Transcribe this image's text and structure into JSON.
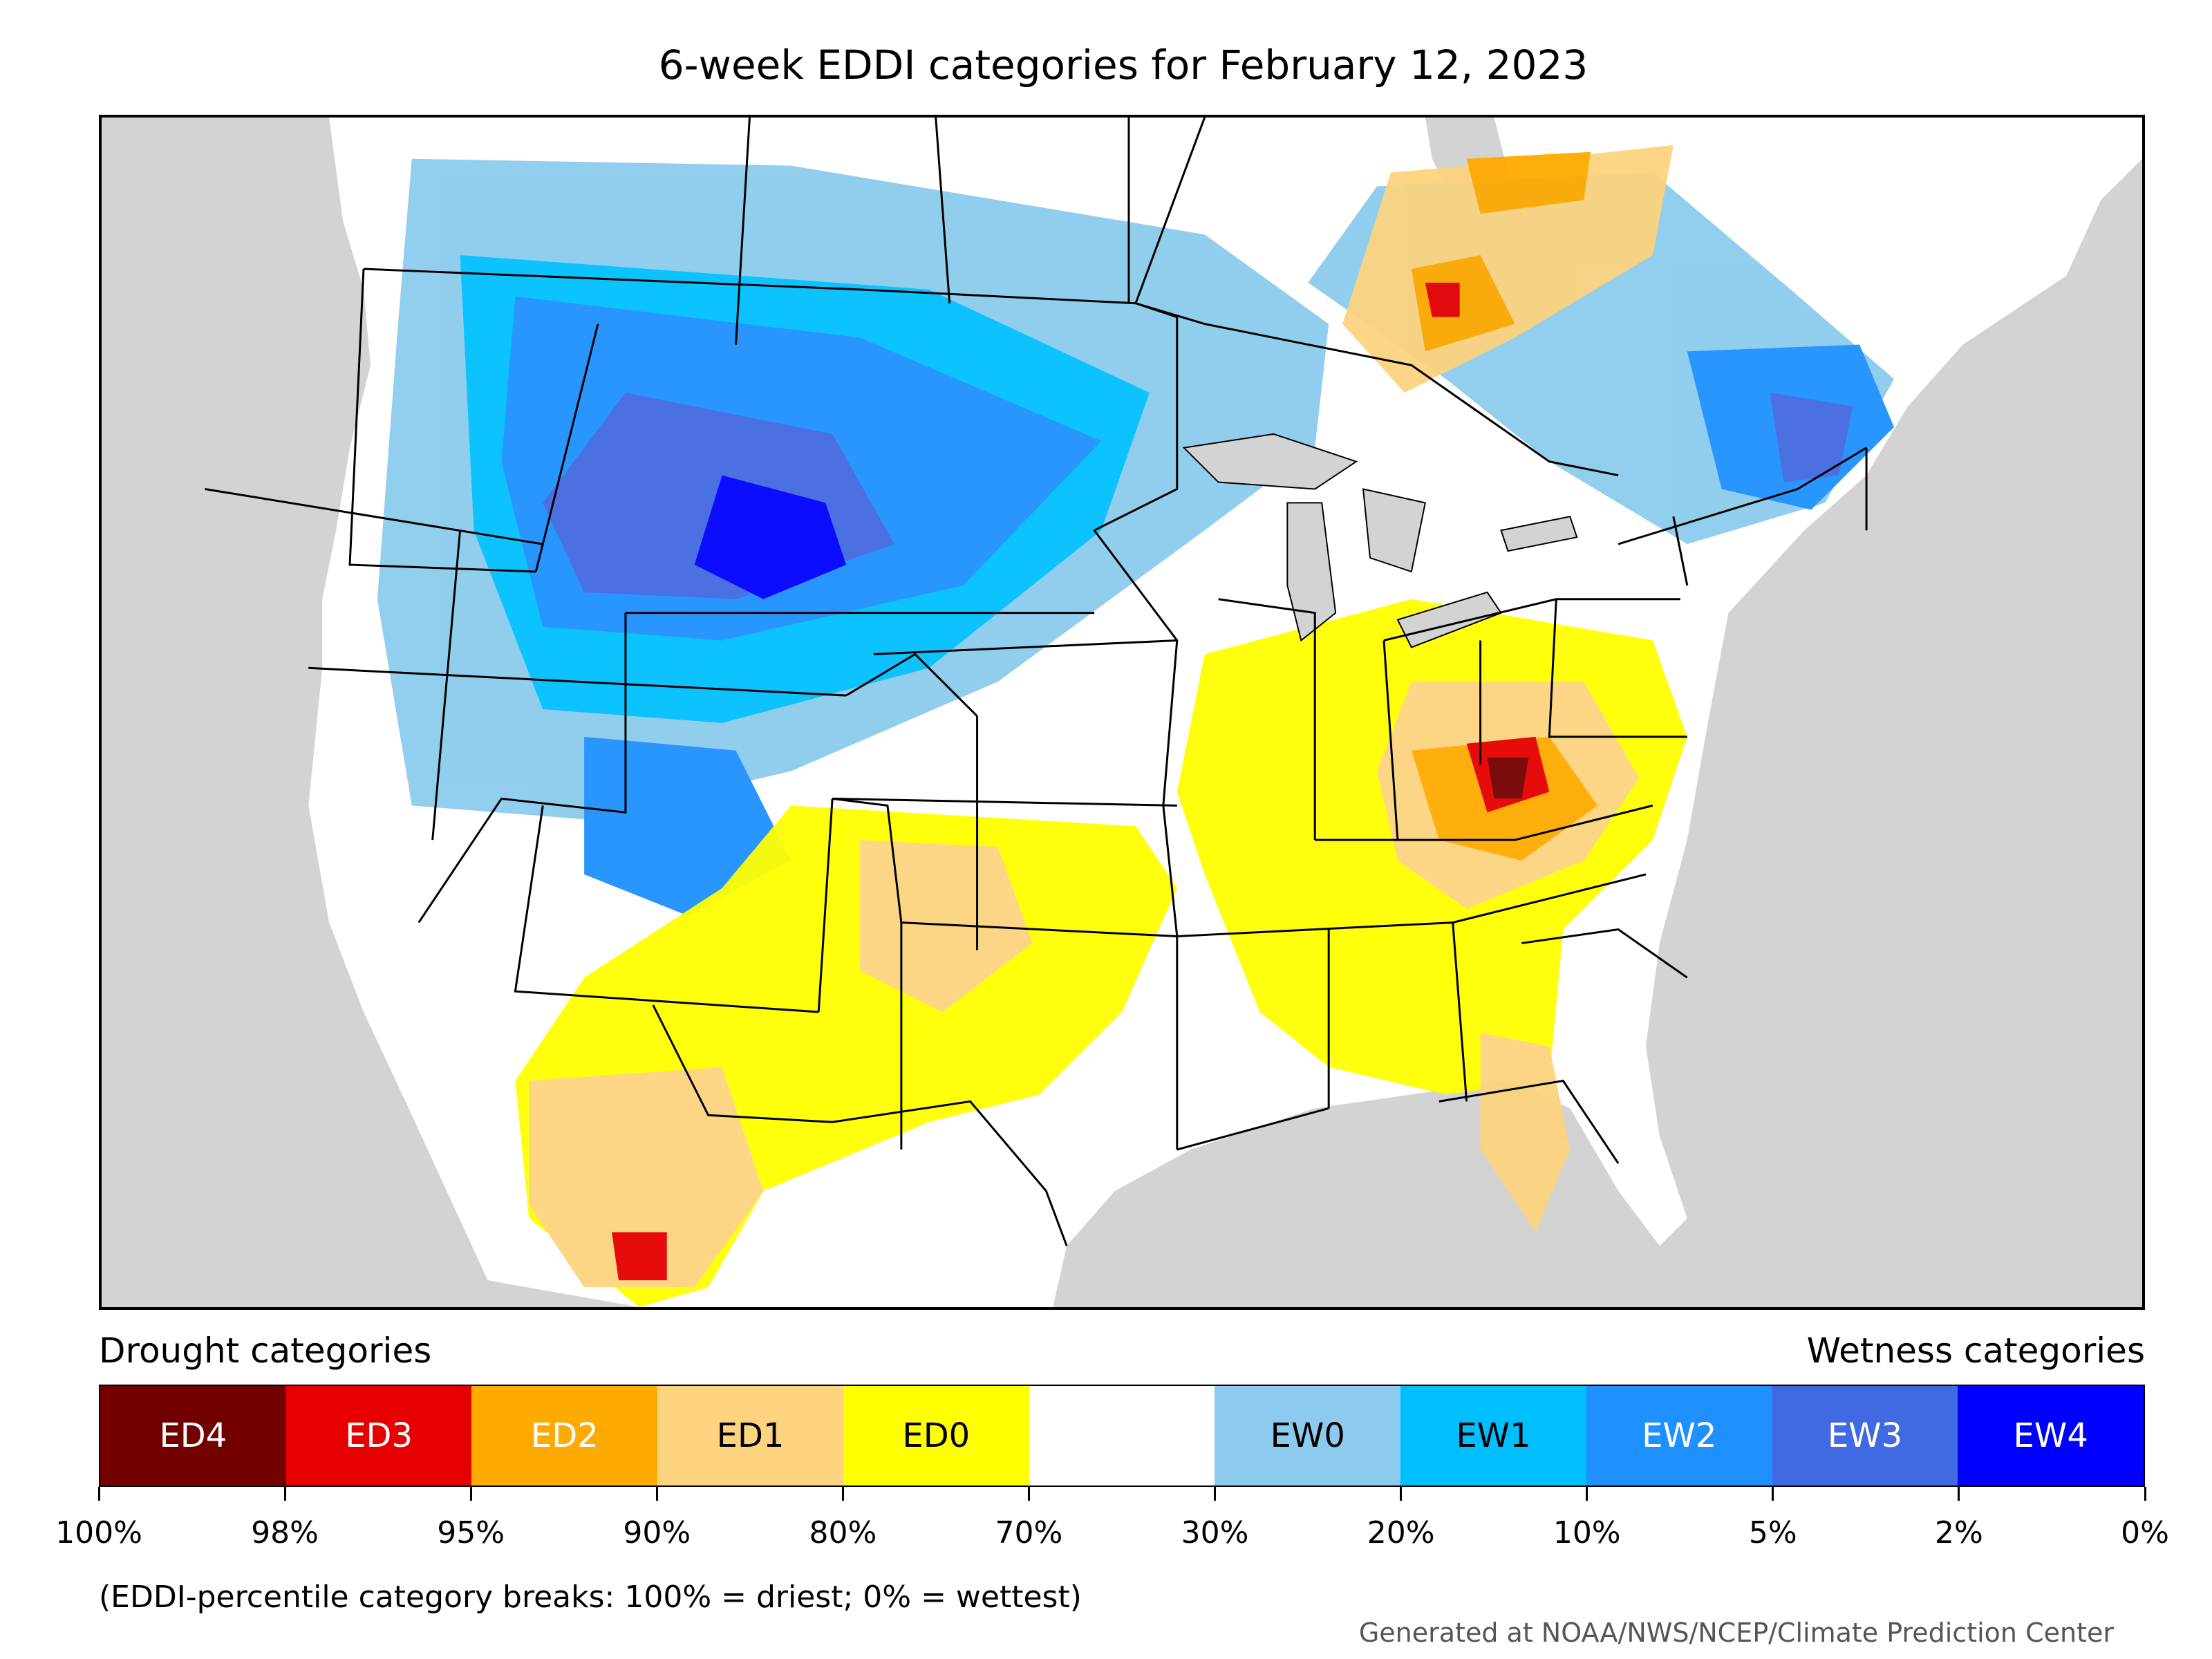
{
  "title": "6-week EDDI categories for February 12, 2023",
  "legend": {
    "drought_label": "Drought categories",
    "wetness_label": "Wetness categories",
    "categories": [
      {
        "label": "ED4",
        "color": "#730000",
        "text_color": "#ffffff"
      },
      {
        "label": "ED3",
        "color": "#e60000",
        "text_color": "#ffffff"
      },
      {
        "label": "ED2",
        "color": "#ffaa00",
        "text_color": "#ffffff"
      },
      {
        "label": "ED1",
        "color": "#fcd37f",
        "text_color": "#000000"
      },
      {
        "label": "ED0",
        "color": "#ffff00",
        "text_color": "#000000"
      },
      {
        "label": "",
        "color": "#ffffff",
        "text_color": "#000000"
      },
      {
        "label": "EW0",
        "color": "#8ccbed",
        "text_color": "#000000"
      },
      {
        "label": "EW1",
        "color": "#00bfff",
        "text_color": "#000000"
      },
      {
        "label": "EW2",
        "color": "#1e90ff",
        "text_color": "#ffffff"
      },
      {
        "label": "EW3",
        "color": "#4169e1",
        "text_color": "#ffffff"
      },
      {
        "label": "EW4",
        "color": "#0000ff",
        "text_color": "#ffffff"
      }
    ],
    "breaks": [
      "100%",
      "98%",
      "95%",
      "90%",
      "80%",
      "70%",
      "30%",
      "20%",
      "10%",
      "5%",
      "2%",
      "0%"
    ]
  },
  "note": "(EDDI-percentile category breaks: 100% = driest; 0% = wettest)",
  "credit": "Generated at NOAA/NWS/NCEP/Climate Prediction Center",
  "colors": {
    "ocean": "#d3d3d3",
    "land": "#ffffff",
    "border": "#000000"
  }
}
